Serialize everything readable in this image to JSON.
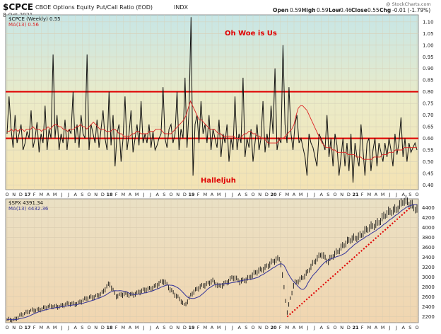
{
  "header": {
    "symbol": "$CPCE",
    "description": "CBOE Options Equity Put/Call Ratio (EOD)",
    "exchange": "INDX",
    "date": "8-Oct-2021",
    "ohlc_labels": [
      "Open",
      "High",
      "Low",
      "Close",
      "Chg"
    ],
    "ohlc_values": [
      "0.59",
      "0.59",
      "0.46",
      "0.55",
      "-0.01 (-1.79%)"
    ],
    "watermark": "@ StockCharts.com"
  },
  "colors": {
    "price_line": "#111111",
    "ma_line": "#dd2222",
    "ma_spx": "#333399",
    "threshold": "#e00000",
    "trend": "#e00000",
    "bar": "#111111"
  },
  "months": [
    "O",
    "N",
    "D",
    "17",
    "F",
    "M",
    "A",
    "M",
    "J",
    "J",
    "A",
    "S",
    "O",
    "N",
    "D",
    "18",
    "F",
    "M",
    "A",
    "M",
    "J",
    "J",
    "A",
    "S",
    "O",
    "N",
    "D",
    "19",
    "F",
    "M",
    "A",
    "M",
    "J",
    "J",
    "A",
    "S",
    "O",
    "N",
    "D",
    "20",
    "F",
    "M",
    "A",
    "M",
    "J",
    "J",
    "A",
    "S",
    "O",
    "N",
    "D",
    "21",
    "F",
    "M",
    "A",
    "M",
    "J",
    "J",
    "A",
    "S",
    "O"
  ],
  "chart_data": [
    {
      "type": "line",
      "legend": [
        "$CPCE (Weekly) 0.55",
        "MA(13) 0.56"
      ],
      "annotations": [
        "Oh Woe is Us",
        "Halleljuh"
      ],
      "thresholds": [
        0.8,
        0.6
      ],
      "y_ticks": [
        "1.10",
        "1.05",
        "1.00",
        "0.95",
        "0.90",
        "0.85",
        "0.80",
        "0.75",
        "0.70",
        "0.65",
        "0.60",
        "0.55",
        "0.50",
        "0.45",
        "0.40"
      ],
      "ylim": [
        0.38,
        1.13
      ],
      "x_start": "2016-10",
      "x_end": "2021-10",
      "series": [
        {
          "name": "$CPCE (Weekly)",
          "values": [
            0.62,
            0.78,
            0.64,
            0.56,
            0.7,
            0.58,
            0.62,
            0.66,
            0.55,
            0.58,
            0.63,
            0.6,
            0.72,
            0.56,
            0.6,
            0.67,
            0.54,
            0.62,
            0.58,
            0.74,
            0.55,
            0.64,
            0.6,
            0.96,
            0.6,
            0.7,
            0.55,
            0.62,
            0.58,
            0.68,
            0.55,
            0.64,
            0.62,
            0.8,
            0.58,
            0.66,
            0.56,
            0.7,
            0.62,
            0.6,
            0.96,
            0.55,
            0.66,
            0.62,
            0.58,
            0.68,
            0.56,
            0.64,
            0.72,
            0.6,
            0.55,
            0.8,
            0.57,
            0.7,
            0.48,
            0.62,
            0.66,
            0.5,
            0.6,
            0.78,
            0.55,
            0.62,
            0.72,
            0.54,
            0.6,
            0.66,
            0.57,
            0.76,
            0.58,
            0.62,
            0.58,
            0.66,
            0.56,
            0.63,
            0.55,
            0.57,
            0.6,
            0.62,
            0.82,
            0.6,
            0.56,
            0.64,
            0.66,
            0.58,
            0.62,
            0.8,
            0.55,
            0.64,
            0.6,
            0.86,
            0.56,
            0.72,
            1.12,
            0.44,
            0.66,
            0.7,
            0.58,
            0.76,
            0.62,
            0.66,
            0.58,
            0.7,
            0.55,
            0.64,
            0.6,
            0.56,
            0.68,
            0.52,
            0.62,
            0.58,
            0.66,
            0.5,
            0.6,
            0.55,
            0.78,
            0.55,
            0.62,
            0.58,
            0.86,
            0.52,
            0.6,
            0.56,
            0.64,
            0.5,
            0.58,
            0.66,
            0.55,
            0.6,
            0.76,
            0.54,
            0.62,
            0.56,
            0.74,
            0.62,
            0.9,
            0.55,
            0.6,
            0.58,
            1.0,
            0.66,
            0.58,
            0.82,
            0.62,
            0.55,
            0.66,
            0.7,
            0.58,
            0.6,
            0.56,
            0.52,
            0.44,
            0.62,
            0.58,
            0.56,
            0.52,
            0.48,
            0.62,
            0.6,
            0.58,
            0.55,
            0.7,
            0.52,
            0.6,
            0.48,
            0.62,
            0.57,
            0.44,
            0.52,
            0.6,
            0.48,
            0.58,
            0.46,
            0.62,
            0.41,
            0.58,
            0.52,
            0.48,
            0.66,
            0.55,
            0.44,
            0.58,
            0.6,
            0.46,
            0.55,
            0.6,
            0.48,
            0.58,
            0.54,
            0.5,
            0.58,
            0.52,
            0.6,
            0.55,
            0.48,
            0.62,
            0.53,
            0.58,
            0.69,
            0.52,
            0.6,
            0.5,
            0.58,
            0.54,
            0.56,
            0.58,
            0.55
          ]
        },
        {
          "name": "MA(13)",
          "values": [
            0.63,
            0.63,
            0.64,
            0.63,
            0.64,
            0.63,
            0.64,
            0.64,
            0.63,
            0.64,
            0.64,
            0.64,
            0.65,
            0.64,
            0.64,
            0.64,
            0.63,
            0.64,
            0.64,
            0.65,
            0.64,
            0.65,
            0.66,
            0.66,
            0.65,
            0.65,
            0.64,
            0.64,
            0.63,
            0.64,
            0.64,
            0.64,
            0.65,
            0.65,
            0.66,
            0.65,
            0.65,
            0.64,
            0.65,
            0.66,
            0.67,
            0.66,
            0.65,
            0.64,
            0.64,
            0.64,
            0.63,
            0.63,
            0.63,
            0.64,
            0.64,
            0.63,
            0.62,
            0.62,
            0.61,
            0.61,
            0.61,
            0.61,
            0.62,
            0.62,
            0.63,
            0.63,
            0.62,
            0.62,
            0.62,
            0.62,
            0.63,
            0.63,
            0.63,
            0.64,
            0.64,
            0.64,
            0.63,
            0.62,
            0.62,
            0.62,
            0.62,
            0.63,
            0.64,
            0.65,
            0.66,
            0.67,
            0.68,
            0.7,
            0.73,
            0.76,
            0.74,
            0.72,
            0.7,
            0.68,
            0.68,
            0.67,
            0.66,
            0.65,
            0.64,
            0.64,
            0.64,
            0.63,
            0.62,
            0.62,
            0.61,
            0.61,
            0.61,
            0.61,
            0.61,
            0.61,
            0.6,
            0.6,
            0.6,
            0.61,
            0.62,
            0.62,
            0.63,
            0.63,
            0.62,
            0.62,
            0.61,
            0.61,
            0.6,
            0.6,
            0.59,
            0.58,
            0.58,
            0.58,
            0.58,
            0.58,
            0.59,
            0.6,
            0.6,
            0.61,
            0.62,
            0.63,
            0.64,
            0.66,
            0.7,
            0.73,
            0.74,
            0.74,
            0.73,
            0.72,
            0.7,
            0.68,
            0.66,
            0.64,
            0.62,
            0.6,
            0.58,
            0.57,
            0.56,
            0.56,
            0.56,
            0.55,
            0.55,
            0.54,
            0.54,
            0.54,
            0.54,
            0.54,
            0.53,
            0.53,
            0.53,
            0.53,
            0.52,
            0.52,
            0.52,
            0.51,
            0.51,
            0.51,
            0.51,
            0.51,
            0.52,
            0.52,
            0.52,
            0.52,
            0.53,
            0.53,
            0.53,
            0.54,
            0.54,
            0.54,
            0.55,
            0.55,
            0.55,
            0.55,
            0.56,
            0.56,
            0.56,
            0.56,
            0.56,
            0.56,
            0.56
          ]
        }
      ]
    },
    {
      "type": "line",
      "legend": [
        "$SPX 4391.34",
        "MA(13) 4432.36"
      ],
      "y_ticks": [
        "4400",
        "4200",
        "4000",
        "3800",
        "3600",
        "3400",
        "3200",
        "3000",
        "2800",
        "2600",
        "2400",
        "2200"
      ],
      "ylim": [
        2080,
        4580
      ],
      "x_start": "2016-10",
      "x_end": "2021-10",
      "trendline": {
        "from": [
          "2020-03",
          2200
        ],
        "to": [
          "2021-09",
          4400
        ]
      },
      "anchors": [
        [
          "2016-10",
          2140
        ],
        [
          "2016-11",
          2120
        ],
        [
          "2016-12",
          2250
        ],
        [
          "2017-03",
          2370
        ],
        [
          "2017-06",
          2430
        ],
        [
          "2017-08",
          2470
        ],
        [
          "2017-12",
          2680
        ],
        [
          "2018-01",
          2870
        ],
        [
          "2018-02",
          2630
        ],
        [
          "2018-04",
          2650
        ],
        [
          "2018-06",
          2720
        ],
        [
          "2018-09",
          2910
        ],
        [
          "2018-10",
          2750
        ],
        [
          "2018-12",
          2420
        ],
        [
          "2019-01",
          2680
        ],
        [
          "2019-04",
          2940
        ],
        [
          "2019-05",
          2790
        ],
        [
          "2019-07",
          3000
        ],
        [
          "2019-08",
          2900
        ],
        [
          "2019-10",
          3040
        ],
        [
          "2019-12",
          3230
        ],
        [
          "2020-02",
          3380
        ],
        [
          "2020-03",
          2300
        ],
        [
          "2020-04",
          2850
        ],
        [
          "2020-06",
          3100
        ],
        [
          "2020-08",
          3500
        ],
        [
          "2020-09",
          3300
        ],
        [
          "2020-11",
          3630
        ],
        [
          "2021-01",
          3800
        ],
        [
          "2021-03",
          3970
        ],
        [
          "2021-05",
          4200
        ],
        [
          "2021-07",
          4400
        ],
        [
          "2021-08",
          4520
        ],
        [
          "2021-09",
          4480
        ],
        [
          "2021-10",
          4391
        ]
      ]
    }
  ]
}
